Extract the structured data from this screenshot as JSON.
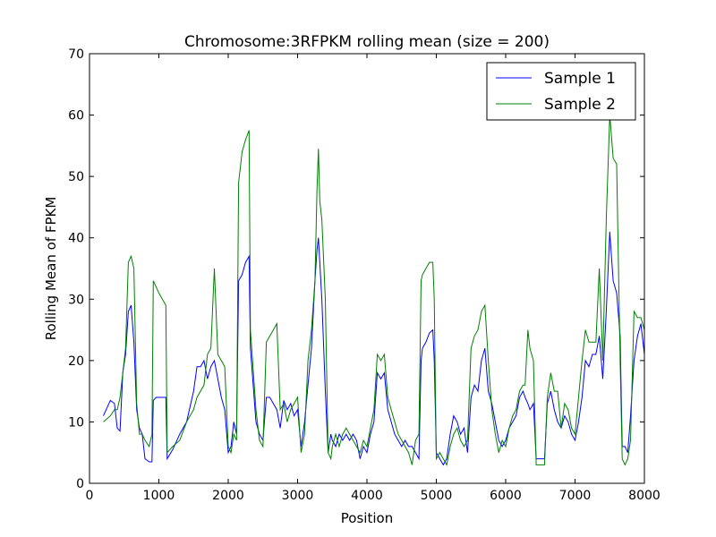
{
  "chart_data": {
    "type": "line",
    "title": "Chromosome:3RFPKM rolling mean (size = 200)",
    "xlabel": "Position",
    "ylabel": "Rolling Mean of FPKM",
    "xlim": [
      0,
      8000
    ],
    "ylim": [
      0,
      70
    ],
    "xticks": [
      0,
      1000,
      2000,
      3000,
      4000,
      5000,
      6000,
      7000,
      8000
    ],
    "yticks": [
      0,
      10,
      20,
      30,
      40,
      50,
      60,
      70
    ],
    "grid": false,
    "legend_position": "top-right",
    "series": [
      {
        "name": "Sample 1",
        "color": "#0000ff",
        "points": [
          [
            200,
            11
          ],
          [
            300,
            13.5
          ],
          [
            360,
            13
          ],
          [
            400,
            9
          ],
          [
            440,
            8.5
          ],
          [
            480,
            18
          ],
          [
            520,
            21
          ],
          [
            560,
            28
          ],
          [
            600,
            29
          ],
          [
            640,
            23
          ],
          [
            680,
            12
          ],
          [
            720,
            9
          ],
          [
            760,
            8
          ],
          [
            800,
            4
          ],
          [
            860,
            3.5
          ],
          [
            900,
            3.5
          ],
          [
            920,
            13.5
          ],
          [
            960,
            14
          ],
          [
            1000,
            14
          ],
          [
            1050,
            14
          ],
          [
            1100,
            14
          ],
          [
            1120,
            4
          ],
          [
            1200,
            5.5
          ],
          [
            1300,
            8
          ],
          [
            1400,
            10
          ],
          [
            1500,
            15
          ],
          [
            1550,
            19
          ],
          [
            1600,
            19
          ],
          [
            1650,
            20
          ],
          [
            1700,
            17
          ],
          [
            1750,
            19
          ],
          [
            1800,
            20
          ],
          [
            1850,
            17
          ],
          [
            1900,
            14
          ],
          [
            1950,
            12
          ],
          [
            2000,
            5
          ],
          [
            2040,
            6
          ],
          [
            2080,
            10
          ],
          [
            2120,
            8
          ],
          [
            2150,
            33
          ],
          [
            2200,
            34
          ],
          [
            2250,
            36
          ],
          [
            2300,
            37
          ],
          [
            2320,
            22
          ],
          [
            2400,
            10
          ],
          [
            2450,
            8
          ],
          [
            2500,
            7
          ],
          [
            2550,
            14
          ],
          [
            2600,
            14
          ],
          [
            2650,
            13
          ],
          [
            2700,
            12
          ],
          [
            2750,
            9
          ],
          [
            2800,
            13.5
          ],
          [
            2850,
            12
          ],
          [
            2900,
            13
          ],
          [
            2950,
            11
          ],
          [
            3000,
            12
          ],
          [
            3050,
            6
          ],
          [
            3100,
            10
          ],
          [
            3150,
            16
          ],
          [
            3200,
            22
          ],
          [
            3250,
            33
          ],
          [
            3280,
            38
          ],
          [
            3300,
            40
          ],
          [
            3320,
            36
          ],
          [
            3350,
            30
          ],
          [
            3400,
            15
          ],
          [
            3440,
            5
          ],
          [
            3480,
            8
          ],
          [
            3500,
            7
          ],
          [
            3550,
            6
          ],
          [
            3600,
            8
          ],
          [
            3650,
            7
          ],
          [
            3700,
            8
          ],
          [
            3750,
            7
          ],
          [
            3800,
            8
          ],
          [
            3850,
            7
          ],
          [
            3900,
            4
          ],
          [
            3950,
            6
          ],
          [
            4000,
            5
          ],
          [
            4050,
            8
          ],
          [
            4100,
            10
          ],
          [
            4150,
            18
          ],
          [
            4200,
            17
          ],
          [
            4250,
            18
          ],
          [
            4300,
            12
          ],
          [
            4350,
            10
          ],
          [
            4400,
            8
          ],
          [
            4450,
            7
          ],
          [
            4500,
            6
          ],
          [
            4550,
            7
          ],
          [
            4600,
            6
          ],
          [
            4650,
            6
          ],
          [
            4700,
            5
          ],
          [
            4750,
            4
          ],
          [
            4780,
            20
          ],
          [
            4800,
            22
          ],
          [
            4850,
            23
          ],
          [
            4900,
            24.5
          ],
          [
            4950,
            25
          ],
          [
            4970,
            20
          ],
          [
            5000,
            5
          ],
          [
            5050,
            4
          ],
          [
            5100,
            3
          ],
          [
            5150,
            4
          ],
          [
            5200,
            8
          ],
          [
            5250,
            11
          ],
          [
            5300,
            10
          ],
          [
            5350,
            8
          ],
          [
            5400,
            9
          ],
          [
            5450,
            5
          ],
          [
            5500,
            14
          ],
          [
            5550,
            16
          ],
          [
            5600,
            15
          ],
          [
            5650,
            20
          ],
          [
            5700,
            22
          ],
          [
            5750,
            15
          ],
          [
            5800,
            13
          ],
          [
            5850,
            10
          ],
          [
            5900,
            7
          ],
          [
            5950,
            6
          ],
          [
            6000,
            7
          ],
          [
            6050,
            9
          ],
          [
            6100,
            10
          ],
          [
            6150,
            11
          ],
          [
            6200,
            14
          ],
          [
            6250,
            15
          ],
          [
            6280,
            14
          ],
          [
            6320,
            13
          ],
          [
            6350,
            12
          ],
          [
            6400,
            13
          ],
          [
            6440,
            4
          ],
          [
            6500,
            4
          ],
          [
            6560,
            4
          ],
          [
            6600,
            13
          ],
          [
            6650,
            15
          ],
          [
            6700,
            12
          ],
          [
            6750,
            10
          ],
          [
            6800,
            9
          ],
          [
            6850,
            11
          ],
          [
            6900,
            10
          ],
          [
            6950,
            8
          ],
          [
            7000,
            7
          ],
          [
            7050,
            10
          ],
          [
            7100,
            14
          ],
          [
            7150,
            20
          ],
          [
            7200,
            19
          ],
          [
            7250,
            21
          ],
          [
            7300,
            21
          ],
          [
            7350,
            24
          ],
          [
            7400,
            17
          ],
          [
            7450,
            28
          ],
          [
            7500,
            41
          ],
          [
            7550,
            33
          ],
          [
            7600,
            31
          ],
          [
            7650,
            24
          ],
          [
            7680,
            6
          ],
          [
            7720,
            6
          ],
          [
            7760,
            5
          ],
          [
            7800,
            11
          ],
          [
            7850,
            20
          ],
          [
            7900,
            24
          ],
          [
            7950,
            26
          ],
          [
            8000,
            21
          ]
        ]
      },
      {
        "name": "Sample 2",
        "color": "#008000",
        "points": [
          [
            200,
            10
          ],
          [
            300,
            11
          ],
          [
            360,
            12
          ],
          [
            400,
            12
          ],
          [
            440,
            14
          ],
          [
            480,
            18
          ],
          [
            520,
            22
          ],
          [
            560,
            36
          ],
          [
            600,
            37
          ],
          [
            640,
            35
          ],
          [
            680,
            13
          ],
          [
            720,
            8
          ],
          [
            760,
            8
          ],
          [
            800,
            7
          ],
          [
            860,
            6
          ],
          [
            900,
            8
          ],
          [
            920,
            33
          ],
          [
            960,
            32
          ],
          [
            1000,
            31
          ],
          [
            1050,
            30
          ],
          [
            1100,
            29
          ],
          [
            1120,
            5
          ],
          [
            1200,
            6
          ],
          [
            1300,
            7
          ],
          [
            1400,
            10
          ],
          [
            1500,
            12
          ],
          [
            1550,
            14
          ],
          [
            1600,
            15
          ],
          [
            1650,
            16
          ],
          [
            1700,
            21
          ],
          [
            1750,
            22
          ],
          [
            1800,
            35
          ],
          [
            1850,
            21
          ],
          [
            1900,
            20
          ],
          [
            1950,
            19
          ],
          [
            2000,
            6
          ],
          [
            2040,
            5
          ],
          [
            2080,
            8
          ],
          [
            2120,
            7
          ],
          [
            2150,
            49
          ],
          [
            2200,
            54
          ],
          [
            2250,
            56
          ],
          [
            2300,
            57.5
          ],
          [
            2320,
            25
          ],
          [
            2400,
            12
          ],
          [
            2450,
            7
          ],
          [
            2500,
            6
          ],
          [
            2550,
            23
          ],
          [
            2600,
            24
          ],
          [
            2650,
            25
          ],
          [
            2700,
            26
          ],
          [
            2750,
            12
          ],
          [
            2800,
            13
          ],
          [
            2850,
            10
          ],
          [
            2900,
            12
          ],
          [
            2950,
            13
          ],
          [
            3000,
            14
          ],
          [
            3050,
            5
          ],
          [
            3100,
            8
          ],
          [
            3150,
            20
          ],
          [
            3200,
            25
          ],
          [
            3250,
            33
          ],
          [
            3280,
            48
          ],
          [
            3300,
            54.5
          ],
          [
            3320,
            46
          ],
          [
            3350,
            43
          ],
          [
            3400,
            30
          ],
          [
            3440,
            5
          ],
          [
            3480,
            4
          ],
          [
            3500,
            6
          ],
          [
            3550,
            8
          ],
          [
            3600,
            6
          ],
          [
            3650,
            8
          ],
          [
            3700,
            9
          ],
          [
            3750,
            8
          ],
          [
            3800,
            7
          ],
          [
            3850,
            6
          ],
          [
            3900,
            5
          ],
          [
            3950,
            7
          ],
          [
            4000,
            6
          ],
          [
            4050,
            9
          ],
          [
            4100,
            12
          ],
          [
            4150,
            21
          ],
          [
            4200,
            20
          ],
          [
            4250,
            21
          ],
          [
            4300,
            14
          ],
          [
            4350,
            12
          ],
          [
            4400,
            10
          ],
          [
            4450,
            8
          ],
          [
            4500,
            7
          ],
          [
            4550,
            6
          ],
          [
            4600,
            5
          ],
          [
            4650,
            3
          ],
          [
            4700,
            7
          ],
          [
            4750,
            8
          ],
          [
            4780,
            33
          ],
          [
            4800,
            34
          ],
          [
            4850,
            35
          ],
          [
            4900,
            36
          ],
          [
            4950,
            36
          ],
          [
            4970,
            30
          ],
          [
            5000,
            4
          ],
          [
            5050,
            5
          ],
          [
            5100,
            4
          ],
          [
            5150,
            3
          ],
          [
            5200,
            6
          ],
          [
            5250,
            8
          ],
          [
            5300,
            9
          ],
          [
            5350,
            7
          ],
          [
            5400,
            6
          ],
          [
            5450,
            7
          ],
          [
            5500,
            22
          ],
          [
            5550,
            24
          ],
          [
            5600,
            25
          ],
          [
            5650,
            28
          ],
          [
            5700,
            29
          ],
          [
            5750,
            20
          ],
          [
            5800,
            12
          ],
          [
            5850,
            8
          ],
          [
            5900,
            5
          ],
          [
            5950,
            7
          ],
          [
            6000,
            6
          ],
          [
            6050,
            9
          ],
          [
            6100,
            11
          ],
          [
            6150,
            12
          ],
          [
            6200,
            15
          ],
          [
            6250,
            16
          ],
          [
            6280,
            16
          ],
          [
            6320,
            25
          ],
          [
            6350,
            22
          ],
          [
            6400,
            20
          ],
          [
            6440,
            3
          ],
          [
            6500,
            3
          ],
          [
            6560,
            3
          ],
          [
            6600,
            14
          ],
          [
            6650,
            18
          ],
          [
            6700,
            15
          ],
          [
            6750,
            15
          ],
          [
            6800,
            9
          ],
          [
            6850,
            13
          ],
          [
            6900,
            12
          ],
          [
            6950,
            9
          ],
          [
            7000,
            8
          ],
          [
            7050,
            14
          ],
          [
            7100,
            20
          ],
          [
            7150,
            25
          ],
          [
            7200,
            23
          ],
          [
            7250,
            23
          ],
          [
            7300,
            23
          ],
          [
            7350,
            35
          ],
          [
            7400,
            20
          ],
          [
            7450,
            43
          ],
          [
            7500,
            60
          ],
          [
            7550,
            53
          ],
          [
            7600,
            52
          ],
          [
            7650,
            20
          ],
          [
            7680,
            4
          ],
          [
            7720,
            3
          ],
          [
            7760,
            4
          ],
          [
            7800,
            7
          ],
          [
            7850,
            28
          ],
          [
            7900,
            27
          ],
          [
            7950,
            27
          ],
          [
            8000,
            25
          ]
        ]
      }
    ]
  }
}
